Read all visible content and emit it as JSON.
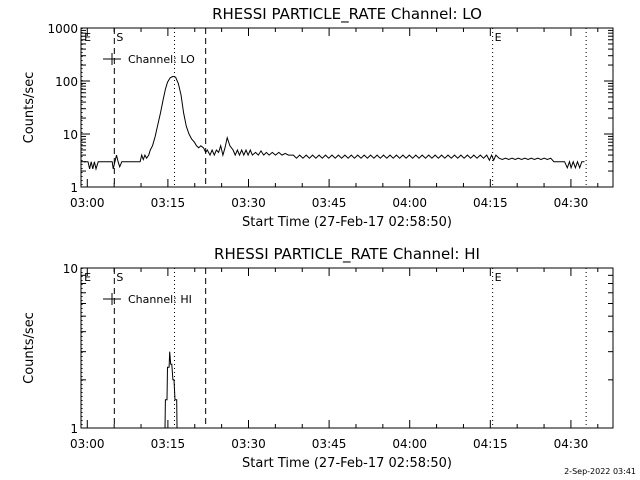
{
  "chart_data": [
    {
      "type": "line",
      "channel": "LO",
      "title": "RHESSI PARTICLE_RATE Channel: LO",
      "xlabel": "Start Time (27-Feb-17 02:58:50)",
      "ylabel": "Counts/sec",
      "yscale": "log",
      "ylim": [
        1,
        1000
      ],
      "xlim_minutes": [
        0,
        99
      ],
      "x_ticks": [
        {
          "min": 1.17,
          "label": "03:00"
        },
        {
          "min": 16.17,
          "label": "03:15"
        },
        {
          "min": 31.17,
          "label": "03:30"
        },
        {
          "min": 46.17,
          "label": "03:45"
        },
        {
          "min": 61.17,
          "label": "04:00"
        },
        {
          "min": 76.17,
          "label": "04:15"
        },
        {
          "min": 91.17,
          "label": "04:30"
        }
      ],
      "y_ticks": [
        {
          "value": 1,
          "label": "1"
        },
        {
          "value": 10,
          "label": "10"
        },
        {
          "value": 100,
          "label": "100"
        },
        {
          "value": 1000,
          "label": "1000"
        }
      ],
      "legend": "Channel: LO",
      "legend_position": "top-left",
      "markers": [
        {
          "min": 0.2,
          "label": "E",
          "style": "dotted"
        },
        {
          "min": 6.2,
          "label": "S",
          "style": "dashed"
        },
        {
          "min": 17.4,
          "label": "",
          "style": "dotted"
        },
        {
          "min": 23.2,
          "label": "",
          "style": "dashed"
        },
        {
          "min": 76.6,
          "label": "E",
          "style": "dotted"
        },
        {
          "min": 94.0,
          "label": "",
          "style": "dotted"
        }
      ],
      "series": [
        {
          "name": "Channel: LO",
          "points": [
            [
              0.5,
              3
            ],
            [
              1.3,
              3
            ],
            [
              1.6,
              2.2
            ],
            [
              1.9,
              3
            ],
            [
              2.2,
              2.2
            ],
            [
              2.5,
              3
            ],
            [
              2.8,
              2.2
            ],
            [
              3.2,
              3
            ],
            [
              5.8,
              3
            ],
            [
              6.0,
              2.2
            ],
            [
              6.3,
              3
            ],
            [
              6.6,
              4
            ],
            [
              6.9,
              3
            ],
            [
              7.2,
              2.4
            ],
            [
              7.6,
              3
            ],
            [
              11.0,
              3
            ],
            [
              11.3,
              4
            ],
            [
              11.6,
              3.3
            ],
            [
              11.9,
              4
            ],
            [
              12.2,
              3.5
            ],
            [
              12.6,
              4
            ],
            [
              12.9,
              5
            ],
            [
              13.3,
              6
            ],
            [
              13.8,
              9
            ],
            [
              14.3,
              15
            ],
            [
              14.8,
              25
            ],
            [
              15.3,
              45
            ],
            [
              15.7,
              70
            ],
            [
              16.1,
              95
            ],
            [
              16.6,
              115
            ],
            [
              17.1,
              122
            ],
            [
              17.6,
              118
            ],
            [
              18.1,
              90
            ],
            [
              18.6,
              55
            ],
            [
              19.1,
              25
            ],
            [
              19.6,
              14
            ],
            [
              20.1,
              10
            ],
            [
              20.6,
              8
            ],
            [
              21.1,
              7
            ],
            [
              21.5,
              6
            ],
            [
              21.9,
              5.5
            ],
            [
              22.3,
              6
            ],
            [
              22.8,
              5.5
            ],
            [
              23.2,
              4.5
            ],
            [
              23.5,
              5
            ],
            [
              24.0,
              4
            ],
            [
              24.4,
              5
            ],
            [
              24.8,
              4
            ],
            [
              25.2,
              5
            ],
            [
              25.6,
              4.5
            ],
            [
              26.0,
              6
            ],
            [
              26.4,
              4
            ],
            [
              26.8,
              5.5
            ],
            [
              27.2,
              8.5
            ],
            [
              27.7,
              6
            ],
            [
              28.3,
              5
            ],
            [
              28.7,
              4
            ],
            [
              29.1,
              5
            ],
            [
              29.5,
              4
            ],
            [
              29.9,
              5
            ],
            [
              30.3,
              4
            ],
            [
              30.7,
              5
            ],
            [
              31.1,
              4
            ],
            [
              31.5,
              5
            ],
            [
              31.9,
              4
            ],
            [
              32.5,
              4.5
            ],
            [
              33.0,
              4
            ],
            [
              33.5,
              4.8
            ],
            [
              34.0,
              4
            ],
            [
              34.5,
              4.5
            ],
            [
              35.0,
              4
            ],
            [
              35.6,
              4.5
            ],
            [
              36.2,
              4
            ],
            [
              36.8,
              4.5
            ],
            [
              37.4,
              4
            ],
            [
              38.0,
              4.3
            ],
            [
              38.6,
              4
            ],
            [
              39.5,
              4
            ],
            [
              40.1,
              3.5
            ],
            [
              40.7,
              4
            ],
            [
              41.3,
              3.5
            ],
            [
              41.9,
              4
            ],
            [
              42.5,
              3.5
            ],
            [
              43.1,
              4
            ],
            [
              43.7,
              3.5
            ],
            [
              44.3,
              4
            ],
            [
              44.9,
              3.5
            ],
            [
              45.5,
              4
            ],
            [
              46.1,
              3.5
            ],
            [
              46.7,
              4
            ],
            [
              47.3,
              3.5
            ],
            [
              47.9,
              4
            ],
            [
              48.5,
              3.5
            ],
            [
              49.1,
              4
            ],
            [
              49.7,
              3.5
            ],
            [
              50.3,
              4
            ],
            [
              50.9,
              3.5
            ],
            [
              51.5,
              4
            ],
            [
              52.1,
              3.5
            ],
            [
              52.7,
              4
            ],
            [
              53.3,
              3.5
            ],
            [
              53.9,
              4
            ],
            [
              54.5,
              3.5
            ],
            [
              55.1,
              4
            ],
            [
              55.7,
              3.5
            ],
            [
              56.3,
              4
            ],
            [
              56.9,
              3.5
            ],
            [
              57.5,
              4
            ],
            [
              58.1,
              3.5
            ],
            [
              58.7,
              4
            ],
            [
              59.3,
              3.5
            ],
            [
              59.9,
              4
            ],
            [
              60.5,
              3.5
            ],
            [
              61.1,
              4
            ],
            [
              61.7,
              3.5
            ],
            [
              62.3,
              4
            ],
            [
              62.9,
              3.5
            ],
            [
              63.5,
              4
            ],
            [
              64.1,
              3.5
            ],
            [
              64.7,
              4
            ],
            [
              65.3,
              3.5
            ],
            [
              65.9,
              4
            ],
            [
              66.5,
              3.5
            ],
            [
              67.1,
              4
            ],
            [
              67.7,
              3.5
            ],
            [
              68.3,
              4
            ],
            [
              68.9,
              3.5
            ],
            [
              69.5,
              4
            ],
            [
              70.1,
              3.5
            ],
            [
              70.7,
              4
            ],
            [
              71.3,
              3.5
            ],
            [
              71.9,
              4
            ],
            [
              72.5,
              3.5
            ],
            [
              73.1,
              4
            ],
            [
              73.7,
              3.5
            ],
            [
              74.3,
              4
            ],
            [
              74.9,
              3.5
            ],
            [
              75.5,
              4
            ],
            [
              76.0,
              3.2
            ],
            [
              76.4,
              4
            ],
            [
              76.8,
              3.2
            ],
            [
              77.2,
              4
            ],
            [
              77.8,
              3.5
            ],
            [
              78.4,
              3.3
            ],
            [
              79.0,
              3.5
            ],
            [
              79.6,
              3.3
            ],
            [
              80.2,
              3.5
            ],
            [
              80.8,
              3.3
            ],
            [
              81.4,
              3.5
            ],
            [
              82.0,
              3.3
            ],
            [
              82.6,
              3.5
            ],
            [
              83.2,
              3.3
            ],
            [
              83.8,
              3.5
            ],
            [
              84.4,
              3.3
            ],
            [
              85.0,
              3.5
            ],
            [
              85.6,
              3.3
            ],
            [
              86.2,
              3.5
            ],
            [
              86.8,
              3.3
            ],
            [
              87.4,
              3.5
            ],
            [
              88.0,
              3
            ],
            [
              89.0,
              3
            ],
            [
              89.5,
              3
            ],
            [
              90.0,
              3
            ],
            [
              90.5,
              2.3
            ],
            [
              90.9,
              3
            ],
            [
              91.2,
              2.3
            ],
            [
              91.6,
              3
            ],
            [
              92.0,
              2.3
            ],
            [
              92.4,
              3
            ],
            [
              92.8,
              2.3
            ],
            [
              93.2,
              3
            ],
            [
              93.7,
              3
            ]
          ]
        }
      ]
    },
    {
      "type": "line",
      "channel": "HI",
      "title": "RHESSI PARTICLE_RATE Channel: HI",
      "xlabel": "Start Time (27-Feb-17 02:58:50)",
      "ylabel": "Counts/sec",
      "yscale": "log",
      "ylim": [
        1,
        10
      ],
      "xlim_minutes": [
        0,
        99
      ],
      "x_ticks": [
        {
          "min": 1.17,
          "label": "03:00"
        },
        {
          "min": 16.17,
          "label": "03:15"
        },
        {
          "min": 31.17,
          "label": "03:30"
        },
        {
          "min": 46.17,
          "label": "03:45"
        },
        {
          "min": 61.17,
          "label": "04:00"
        },
        {
          "min": 76.17,
          "label": "04:15"
        },
        {
          "min": 91.17,
          "label": "04:30"
        }
      ],
      "y_ticks": [
        {
          "value": 1,
          "label": "1"
        },
        {
          "value": 10,
          "label": "10"
        }
      ],
      "legend": "Channel: HI",
      "legend_position": "top-left",
      "markers": [
        {
          "min": 0.2,
          "label": "E",
          "style": "dotted"
        },
        {
          "min": 6.2,
          "label": "S",
          "style": "dashed"
        },
        {
          "min": 17.4,
          "label": "",
          "style": "dotted"
        },
        {
          "min": 23.2,
          "label": "",
          "style": "dashed"
        },
        {
          "min": 76.6,
          "label": "E",
          "style": "dotted"
        },
        {
          "min": 94.0,
          "label": "",
          "style": "dotted"
        }
      ],
      "series": [
        {
          "name": "Channel: HI",
          "points": [
            [
              15.6,
              0.8
            ],
            [
              15.7,
              1.5
            ],
            [
              16.0,
              1.5
            ],
            [
              16.1,
              2.4
            ],
            [
              16.4,
              2.4
            ],
            [
              16.5,
              3.0
            ],
            [
              16.7,
              2.5
            ],
            [
              16.9,
              2.5
            ],
            [
              17.1,
              2.0
            ],
            [
              17.3,
              2.0
            ],
            [
              17.5,
              1.5
            ],
            [
              17.8,
              1.5
            ],
            [
              17.9,
              0.8
            ]
          ]
        }
      ]
    }
  ],
  "footer_date": "2-Sep-2022 03:41"
}
